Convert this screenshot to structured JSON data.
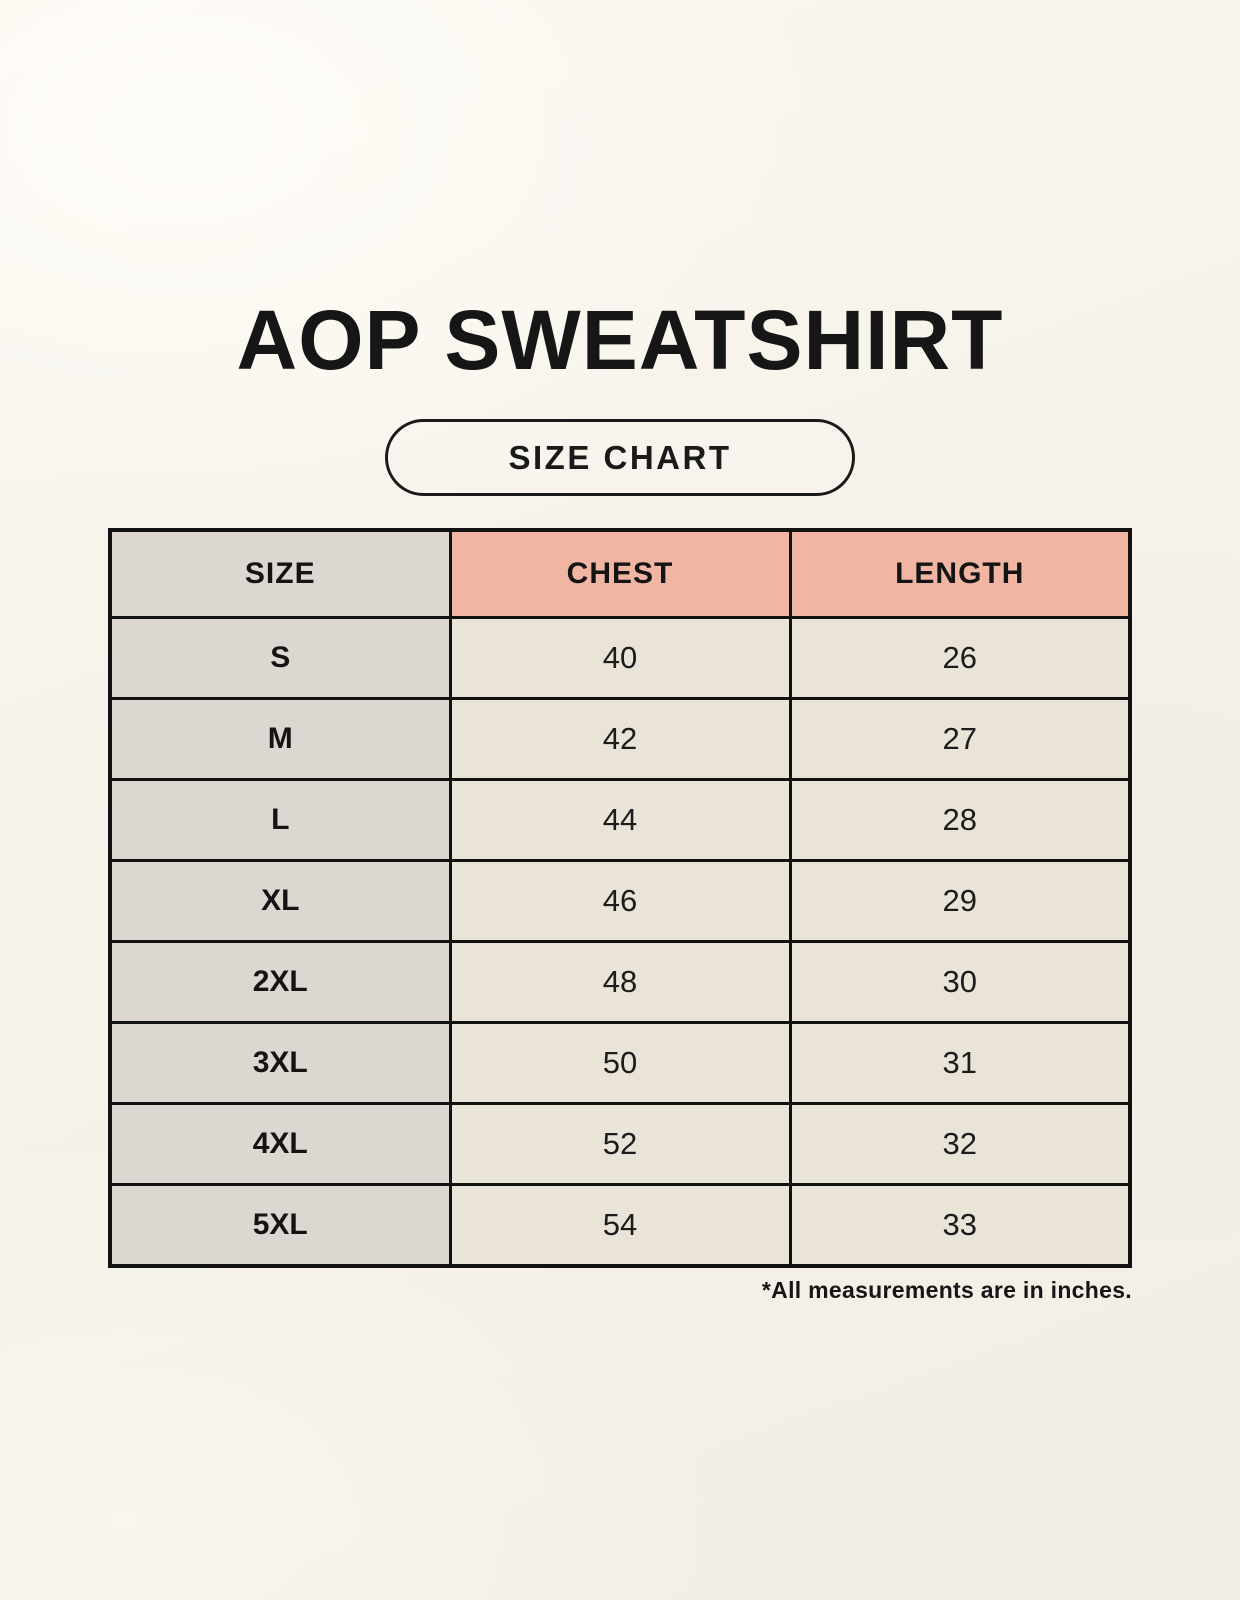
{
  "page": {
    "title": "AOP SWEATSHIRT",
    "size_chart_badge": "SIZE CHART",
    "footnote": "*All measurements are in inches."
  },
  "chart_data": {
    "type": "table",
    "title": "AOP SWEATSHIRT",
    "subtitle": "SIZE CHART",
    "columns": [
      "SIZE",
      "CHEST",
      "LENGTH"
    ],
    "rows": [
      {
        "size": "S",
        "chest": "40",
        "length": "26"
      },
      {
        "size": "M",
        "chest": "42",
        "length": "27"
      },
      {
        "size": "L",
        "chest": "44",
        "length": "28"
      },
      {
        "size": "XL",
        "chest": "46",
        "length": "29"
      },
      {
        "size": "2XL",
        "chest": "48",
        "length": "30"
      },
      {
        "size": "3XL",
        "chest": "50",
        "length": "31"
      },
      {
        "size": "4XL",
        "chest": "52",
        "length": "32"
      },
      {
        "size": "5XL",
        "chest": "54",
        "length": "33"
      }
    ],
    "units": "inches",
    "note": "*All measurements are in inches."
  },
  "colors": {
    "background": "#f7f3ec",
    "header_pink": "#f1b5a3",
    "size_column_gray": "#ddd7d2",
    "cell_cream": "#eae3d8",
    "border_black": "#121212",
    "text": "#141414"
  }
}
